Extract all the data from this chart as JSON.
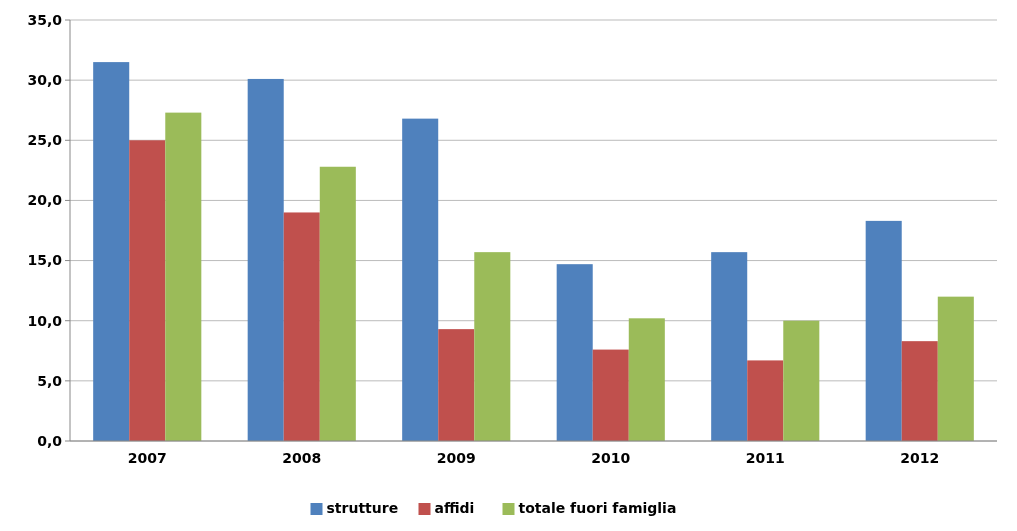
{
  "chart_data": {
    "type": "bar",
    "categories": [
      "2007",
      "2008",
      "2009",
      "2010",
      "2011",
      "2012"
    ],
    "series": [
      {
        "name": "strutture",
        "color": "#4f81bd",
        "values": [
          31.5,
          30.1,
          26.8,
          14.7,
          15.7,
          18.3
        ]
      },
      {
        "name": "affidi",
        "color": "#c0504d",
        "values": [
          25.0,
          19.0,
          9.3,
          7.6,
          6.7,
          8.3
        ]
      },
      {
        "name": "totale fuori famiglia",
        "color": "#9bbb59",
        "values": [
          27.3,
          22.8,
          15.7,
          10.2,
          10.0,
          12.0
        ]
      }
    ],
    "ylim": [
      0,
      35
    ],
    "yticks": [
      {
        "value": 0,
        "label": "0,0"
      },
      {
        "value": 5,
        "label": "5,0"
      },
      {
        "value": 10,
        "label": "10,0"
      },
      {
        "value": 15,
        "label": "15,0"
      },
      {
        "value": 20,
        "label": "20,0"
      },
      {
        "value": 25,
        "label": "25,0"
      },
      {
        "value": 30,
        "label": "30,0"
      },
      {
        "value": 35,
        "label": "35,0"
      }
    ],
    "grid": "y",
    "legend": "bottom"
  }
}
